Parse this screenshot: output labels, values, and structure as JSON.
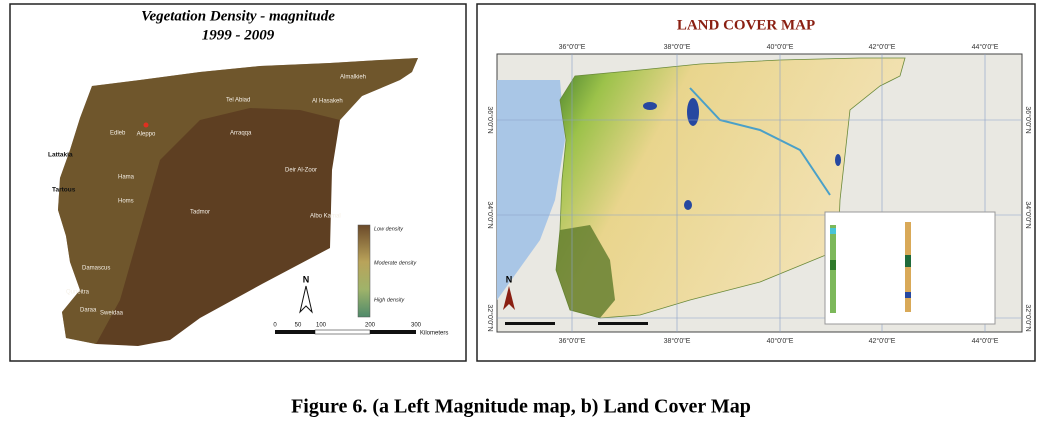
{
  "left_map": {
    "title": "Vegetation Density  - magnitude",
    "period": "1999 - 2009",
    "cities": [
      "Lattakia",
      "Tartous",
      "Aleppo",
      "Edleb",
      "Hama",
      "Homs",
      "Tadmor",
      "Damascus",
      "Quneitra",
      "Daraa",
      "Sweidaa",
      "Tel Abiad",
      "Al Hasakeh",
      "Almalkieh",
      "Arraqqa",
      "Deir Al-Zoor",
      "Albo Kamal"
    ],
    "legend": [
      "Low density",
      "Moderate density",
      "High density"
    ],
    "scale": [
      "0",
      "50",
      "100",
      "200",
      "300",
      "Kilometers"
    ],
    "north": "N"
  },
  "right_map": {
    "title": "LAND COVER MAP",
    "longitudes": [
      "36°0'0\"E",
      "38°0'0\"E",
      "40°0'0\"E",
      "42°0'0\"E",
      "44°0'0\"E"
    ],
    "latitudes": [
      "36°0'0\"N",
      "34°0'0\"N",
      "32°0'0\"N"
    ],
    "north": "N"
  },
  "caption": "Figure  6. (a Left Magnitude map,  b) Land Cover Map"
}
